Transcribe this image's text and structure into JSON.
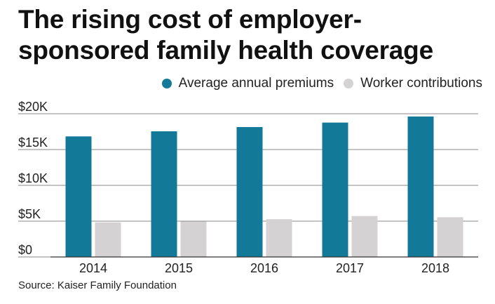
{
  "title": "The rising cost of employer-sponsored family health coverage",
  "source": "Source: Kaiser Family Foundation",
  "colors": {
    "premiums": "#127a98",
    "contributions": "#d4d2d3",
    "grid": "#888888"
  },
  "chart_data": {
    "type": "bar",
    "title": "The rising cost of employer-sponsored family health coverage",
    "categories": [
      "2014",
      "2015",
      "2016",
      "2017",
      "2018"
    ],
    "series": [
      {
        "name": "Average annual premiums",
        "values": [
          16834,
          17545,
          18142,
          18764,
          19616
        ]
      },
      {
        "name": "Worker contributions",
        "values": [
          4823,
          4955,
          5277,
          5714,
          5547
        ]
      }
    ],
    "y_ticks": [
      {
        "value": 0,
        "label": "$0"
      },
      {
        "value": 5000,
        "label": "$5K"
      },
      {
        "value": 10000,
        "label": "$10K"
      },
      {
        "value": 15000,
        "label": "$15K"
      },
      {
        "value": 20000,
        "label": "$20K"
      }
    ],
    "ylim": [
      0,
      20000
    ],
    "grid": true,
    "legend": "top-right"
  }
}
